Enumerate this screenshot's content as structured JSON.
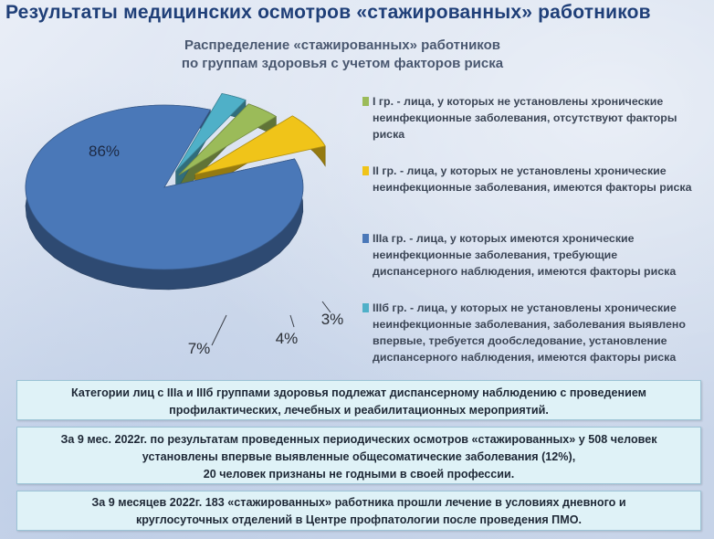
{
  "header": {
    "title": "Результаты медицинских осмотров «стажированных» работников"
  },
  "chart_data": {
    "type": "pie",
    "title": "Распределение «стажированных» работников по группам здоровья с учетом факторов риска",
    "title_lines": [
      "Распределение «стажированных» работников",
      "по группам здоровья с учетом факторов риска"
    ],
    "categories": [
      "IIIa гр.",
      "I гр.",
      "II гр.",
      "IIIб гр."
    ],
    "values": [
      86,
      4,
      7,
      3
    ],
    "value_labels": [
      "86%",
      "4%",
      "7%",
      "3%"
    ],
    "colors": [
      "#4a78b8",
      "#9bbb59",
      "#f0c419",
      "#4fb0c8"
    ],
    "legend_position": "right",
    "legend": [
      {
        "color": "#9bbb59",
        "lines": [
          "I гр. - лица, у которых не установлены хронические",
          "неинфекционные заболевания, отсутствуют факторы",
          "риска"
        ]
      },
      {
        "color": "#f0c419",
        "lines": [
          "II гр. - лица, у которых не установлены хронические",
          "неинфекционные заболевания, имеются факторы риска"
        ]
      },
      {
        "color": "#4a78b8",
        "lines": [
          "IIIa гр. - лица, у которых имеются хронические",
          "неинфекционные заболевания, требующие",
          "диспансерного наблюдения, имеются факторы риска"
        ]
      },
      {
        "color": "#4fb0c8",
        "lines": [
          "IIIб гр.  - лица, у которых не установлены хронические",
          "неинфекционные заболевания, заболевания выявлено",
          "впервые, требуется дообследование, установление",
          "диспансерного наблюдения, имеются факторы риска"
        ]
      }
    ]
  },
  "notes": [
    {
      "lines": [
        "Категории лиц с IIIa и IIIб группами здоровья подлежат диспансерному наблюдению с проведением",
        "профилактических, лечебных и реабилитационных мероприятий."
      ]
    },
    {
      "lines": [
        "За 9 мес. 2022г. по результатам проведенных периодических осмотров «стажированных» у 508 человек",
        "установлены впервые выявленные общесоматические заболевания (12%),",
        "20  человек признаны не годными в своей профессии."
      ]
    },
    {
      "lines": [
        "За 9 месяцев 2022г. 183 «стажированных» работника прошли лечение в условиях дневного и",
        "круглосуточных отделений  в Центре профпатологии после проведения ПМО."
      ]
    }
  ]
}
